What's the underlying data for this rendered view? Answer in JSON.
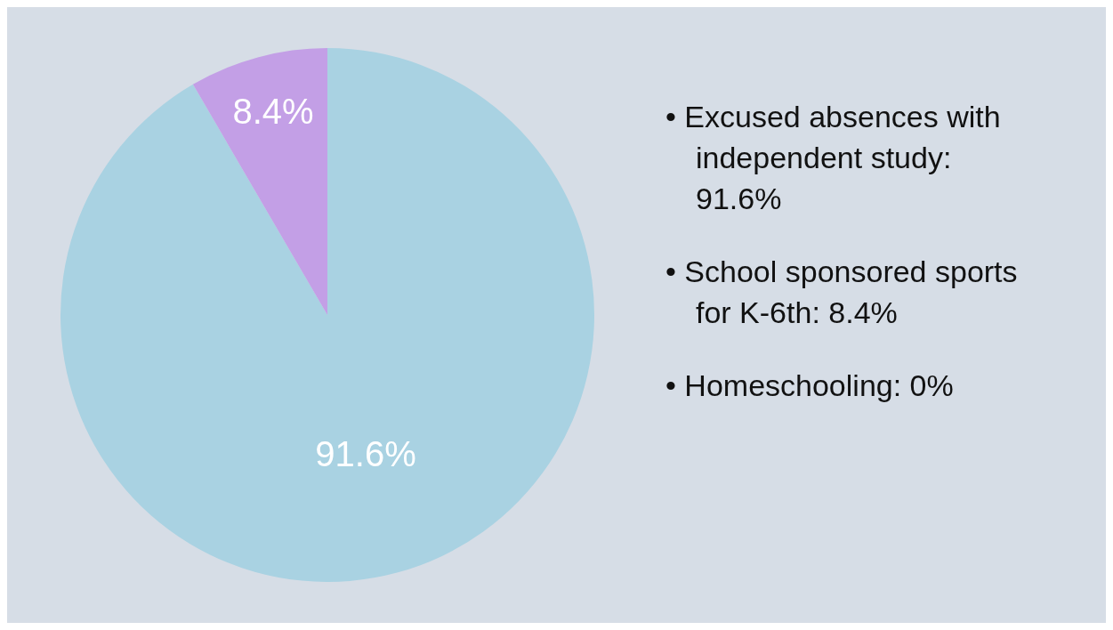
{
  "chart_data": {
    "type": "pie",
    "categories": [
      null,
      null,
      null
    ],
    "values": [
      91.6,
      8.4,
      0
    ],
    "colors": [
      "#a9d2e2",
      "#c39fe6",
      "#f0b48a"
    ],
    "value_labels": [
      "91.6%",
      "8.4%",
      null
    ],
    "annotations": [
      "• Excused absences with independent study: 91.6%",
      "• School sponsored sports for K-6th: 8.4%",
      "• Homeschooling: 0%"
    ]
  }
}
